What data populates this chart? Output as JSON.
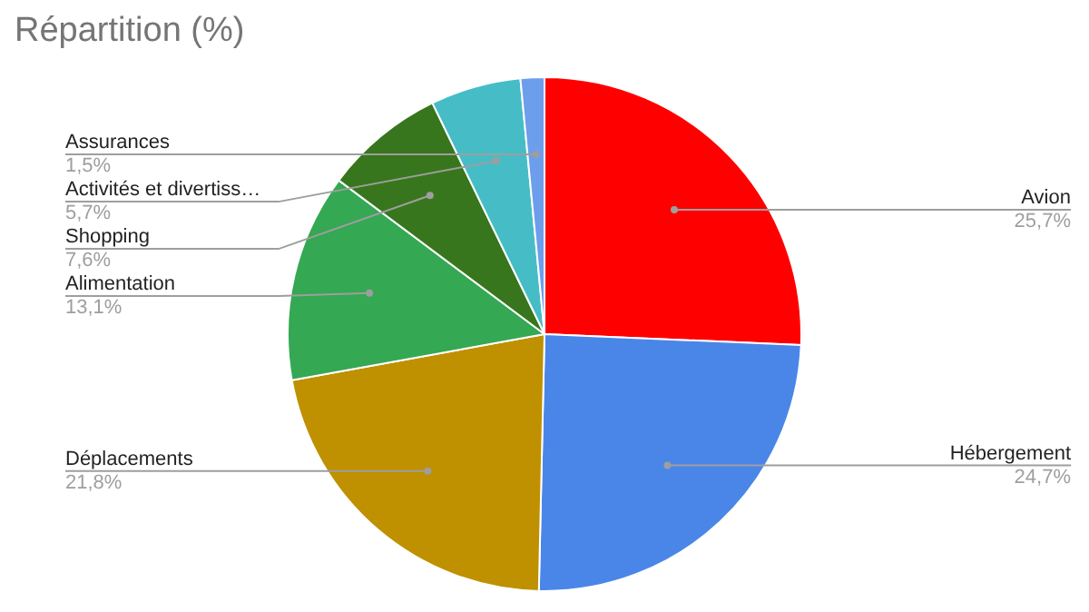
{
  "chart_data": {
    "type": "pie",
    "title": "Répartition (%)",
    "categories": [
      "Avion",
      "Hébergement",
      "Déplacements",
      "Alimentation",
      "Shopping",
      "Activités et divertiss…",
      "Assurances"
    ],
    "values": [
      25.7,
      24.7,
      21.8,
      13.1,
      7.6,
      5.7,
      1.5
    ],
    "value_labels": [
      "25,7%",
      "24,7%",
      "21,8%",
      "13,1%",
      "7,6%",
      "5,7%",
      "1,5%"
    ],
    "colors": [
      "#ff0000",
      "#4a86e8",
      "#bf9000",
      "#34a853",
      "#38761d",
      "#46bdc6",
      "#6d9eeb"
    ],
    "legend": false
  }
}
